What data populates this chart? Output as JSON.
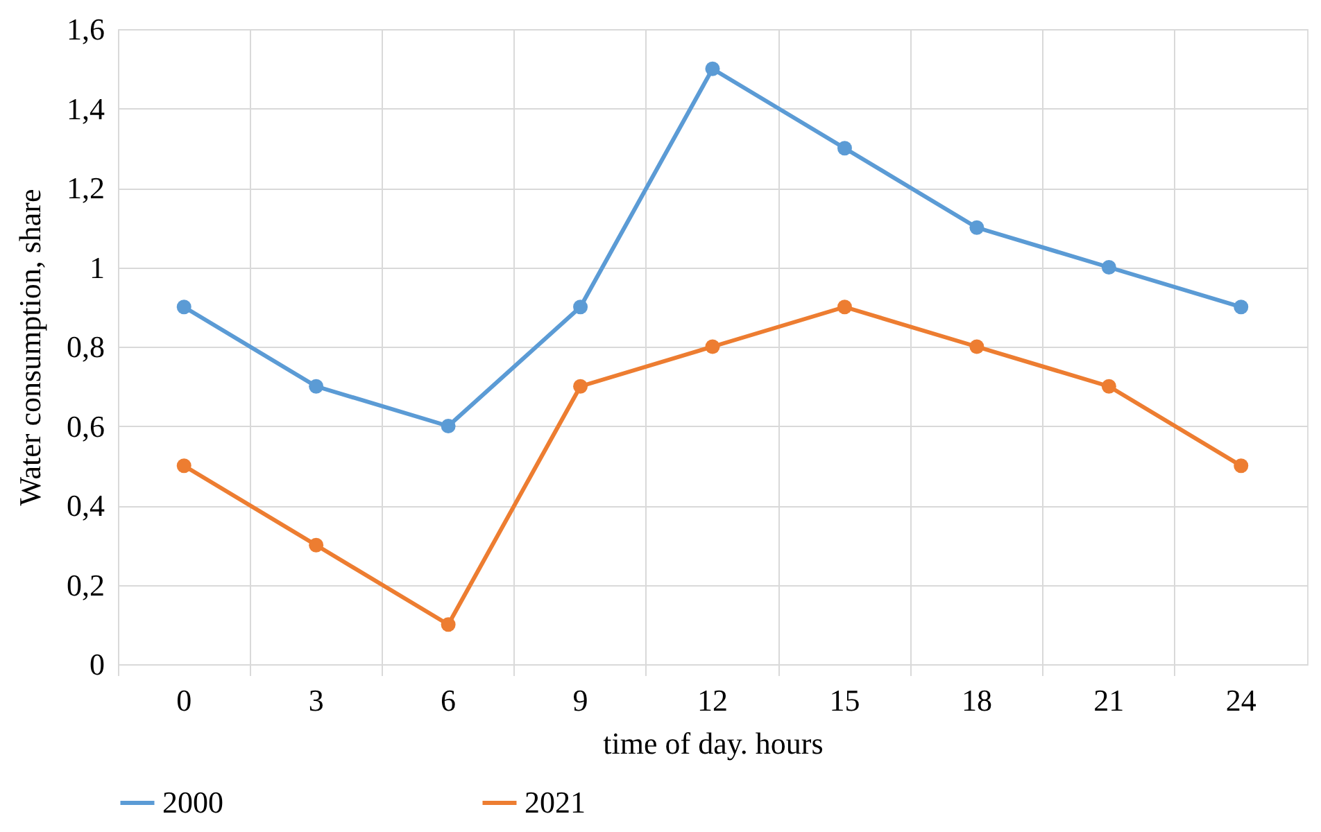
{
  "chart_data": {
    "type": "line",
    "xlabel": "time of day. hours",
    "ylabel": "Water consumption, share",
    "categories": [
      "0",
      "3",
      "6",
      "9",
      "12",
      "15",
      "18",
      "21",
      "24"
    ],
    "series": [
      {
        "name": "2000",
        "color": "#5b9bd5",
        "values": [
          0.9,
          0.7,
          0.6,
          0.9,
          1.5,
          1.3,
          1.1,
          1.0,
          0.9
        ]
      },
      {
        "name": "2021",
        "color": "#ed7d31",
        "values": [
          0.5,
          0.3,
          0.1,
          0.7,
          0.8,
          0.9,
          0.8,
          0.7,
          0.5
        ]
      }
    ],
    "ylim": [
      0,
      1.6
    ],
    "yticks": [
      0,
      {
        "value": 0.2,
        "label": "0,2"
      },
      {
        "value": 0.4,
        "label": "0,4"
      },
      {
        "value": 0.6,
        "label": "0,6"
      },
      {
        "value": 0.8,
        "label": "0,8"
      },
      1,
      {
        "value": 1.2,
        "label": "1,2"
      },
      {
        "value": 1.4,
        "label": "1,4"
      },
      {
        "value": 1.6,
        "label": "1,6"
      }
    ],
    "grid": true,
    "legend": "bottom",
    "marker": "circle",
    "line_style": "solid"
  }
}
